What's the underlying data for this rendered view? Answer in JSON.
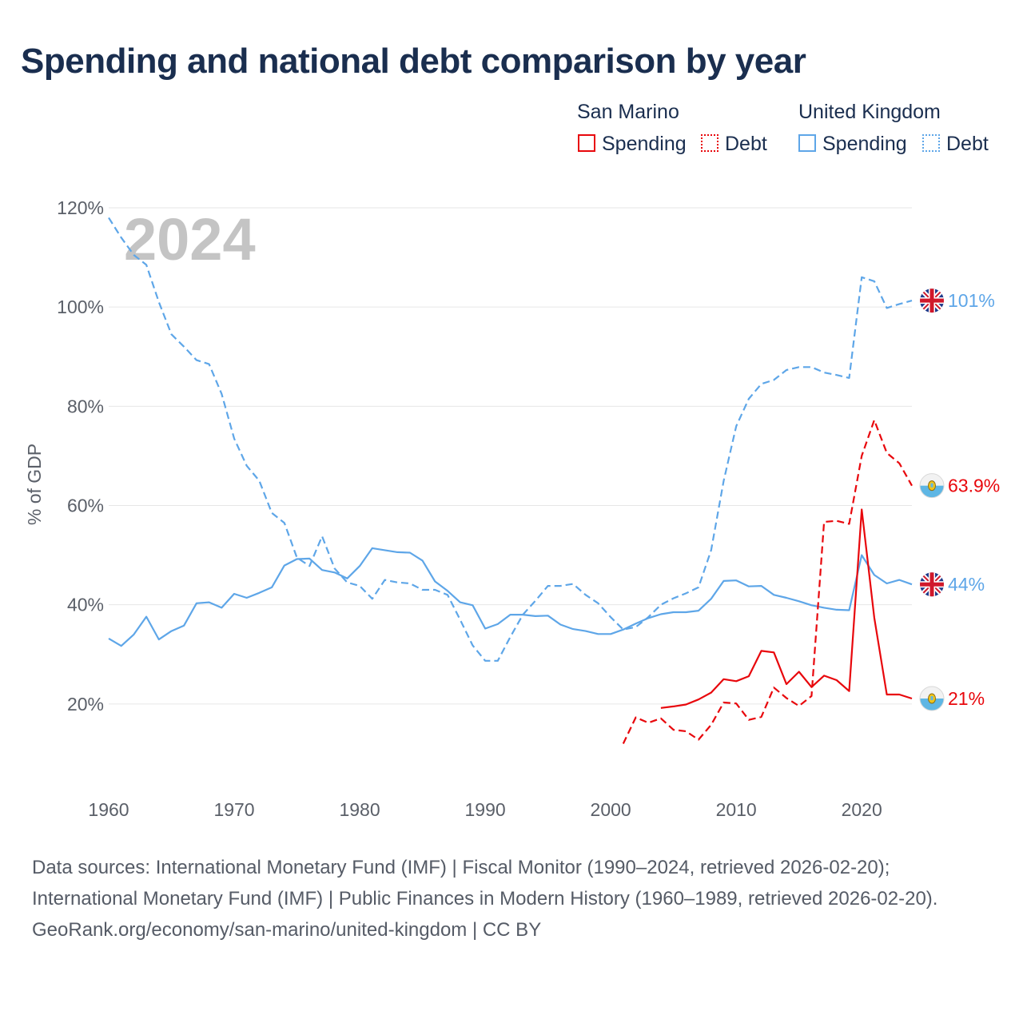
{
  "title": "Spending and national debt comparison by year",
  "legend": {
    "groups": [
      {
        "name": "San Marino",
        "items": [
          "Spending",
          "Debt"
        ]
      },
      {
        "name": "United Kingdom",
        "items": [
          "Spending",
          "Debt"
        ]
      }
    ]
  },
  "colors": {
    "san_marino": "#e8070c",
    "united_kingdom": "#5ea6e8",
    "grid": "#e6e6e6",
    "year_watermark": "#c4c4c4"
  },
  "chart_data": {
    "type": "line",
    "title": "Spending and national debt comparison by year",
    "xlabel": "",
    "ylabel": "% of GDP",
    "xlim": [
      1960,
      2024
    ],
    "ylim": [
      0,
      120
    ],
    "x_ticks": [
      1960,
      1970,
      1980,
      1990,
      2000,
      2010,
      2020
    ],
    "y_ticks": [
      20,
      40,
      60,
      80,
      100,
      120
    ],
    "y_tick_labels": [
      "20%",
      "40%",
      "60%",
      "80%",
      "100%",
      "120%"
    ],
    "x_tick_labels": [
      "1960",
      "1970",
      "1980",
      "1990",
      "2000",
      "2010",
      "2020"
    ],
    "watermark_year": "2024",
    "series": [
      {
        "name": "United Kingdom Debt",
        "country": "United Kingdom",
        "metric": "Debt",
        "style": "dashed",
        "color": "#5ea6e8",
        "end_label": "101%",
        "end_icon": "uk-flag",
        "points": [
          [
            1960,
            118
          ],
          [
            1961,
            114
          ],
          [
            1962,
            110.5
          ],
          [
            1963,
            108.5
          ],
          [
            1964,
            101
          ],
          [
            1965,
            94.5
          ],
          [
            1966,
            92
          ],
          [
            1967,
            89.3
          ],
          [
            1968,
            88.5
          ],
          [
            1969,
            82.5
          ],
          [
            1970,
            73.5
          ],
          [
            1971,
            68
          ],
          [
            1972,
            65
          ],
          [
            1973,
            58.5
          ],
          [
            1974,
            56.5
          ],
          [
            1975,
            49.5
          ],
          [
            1976,
            47.8
          ],
          [
            1977,
            53.8
          ],
          [
            1978,
            47.3
          ],
          [
            1979,
            44.5
          ],
          [
            1980,
            43.8
          ],
          [
            1981,
            41.2
          ],
          [
            1982,
            45
          ],
          [
            1983,
            44.5
          ],
          [
            1984,
            44.3
          ],
          [
            1985,
            43
          ],
          [
            1986,
            43
          ],
          [
            1987,
            42
          ],
          [
            1988,
            37
          ],
          [
            1989,
            31.8
          ],
          [
            1990,
            28.7
          ],
          [
            1991,
            28.7
          ],
          [
            1992,
            33.5
          ],
          [
            1993,
            38
          ],
          [
            1994,
            40.8
          ],
          [
            1995,
            43.8
          ],
          [
            1996,
            43.8
          ],
          [
            1997,
            44.2
          ],
          [
            1998,
            42
          ],
          [
            1999,
            40.3
          ],
          [
            2000,
            37.5
          ],
          [
            2001,
            35
          ],
          [
            2002,
            35.5
          ],
          [
            2003,
            37.5
          ],
          [
            2004,
            40
          ],
          [
            2005,
            41.3
          ],
          [
            2006,
            42.3
          ],
          [
            2007,
            43.5
          ],
          [
            2008,
            51
          ],
          [
            2009,
            65
          ],
          [
            2010,
            76
          ],
          [
            2011,
            81.5
          ],
          [
            2012,
            84.5
          ],
          [
            2013,
            85.3
          ],
          [
            2014,
            87.3
          ],
          [
            2015,
            87.9
          ],
          [
            2016,
            87.9
          ],
          [
            2017,
            86.8
          ],
          [
            2018,
            86.3
          ],
          [
            2019,
            85.7
          ],
          [
            2020,
            106
          ],
          [
            2021,
            105.2
          ],
          [
            2022,
            99.8
          ],
          [
            2023,
            100.6
          ],
          [
            2024,
            101.3
          ]
        ]
      },
      {
        "name": "United Kingdom Spending",
        "country": "United Kingdom",
        "metric": "Spending",
        "style": "solid",
        "color": "#5ea6e8",
        "end_label": "44%",
        "end_icon": "uk-flag",
        "points": [
          [
            1960,
            33.2
          ],
          [
            1961,
            31.7
          ],
          [
            1962,
            34
          ],
          [
            1963,
            37.6
          ],
          [
            1964,
            33
          ],
          [
            1965,
            34.7
          ],
          [
            1966,
            35.8
          ],
          [
            1967,
            40.3
          ],
          [
            1968,
            40.5
          ],
          [
            1969,
            39.4
          ],
          [
            1970,
            42.2
          ],
          [
            1971,
            41.4
          ],
          [
            1972,
            42.4
          ],
          [
            1973,
            43.5
          ],
          [
            1974,
            47.9
          ],
          [
            1975,
            49.2
          ],
          [
            1976,
            49.3
          ],
          [
            1977,
            47
          ],
          [
            1978,
            46.5
          ],
          [
            1979,
            45.3
          ],
          [
            1980,
            47.8
          ],
          [
            1981,
            51.4
          ],
          [
            1982,
            51
          ],
          [
            1983,
            50.6
          ],
          [
            1984,
            50.5
          ],
          [
            1985,
            48.9
          ],
          [
            1986,
            44.7
          ],
          [
            1987,
            42.8
          ],
          [
            1988,
            40.5
          ],
          [
            1989,
            39.9
          ],
          [
            1990,
            35.2
          ],
          [
            1991,
            36.1
          ],
          [
            1992,
            38
          ],
          [
            1993,
            38
          ],
          [
            1994,
            37.7
          ],
          [
            1995,
            37.8
          ],
          [
            1996,
            36
          ],
          [
            1997,
            35.1
          ],
          [
            1998,
            34.7
          ],
          [
            1999,
            34.1
          ],
          [
            2000,
            34.1
          ],
          [
            2001,
            35
          ],
          [
            2002,
            36.2
          ],
          [
            2003,
            37.3
          ],
          [
            2004,
            38.1
          ],
          [
            2005,
            38.5
          ],
          [
            2006,
            38.5
          ],
          [
            2007,
            38.8
          ],
          [
            2008,
            41.2
          ],
          [
            2009,
            44.8
          ],
          [
            2010,
            44.9
          ],
          [
            2011,
            43.7
          ],
          [
            2012,
            43.8
          ],
          [
            2013,
            42
          ],
          [
            2014,
            41.4
          ],
          [
            2015,
            40.7
          ],
          [
            2016,
            39.9
          ],
          [
            2017,
            39.4
          ],
          [
            2018,
            39
          ],
          [
            2019,
            38.9
          ],
          [
            2020,
            50
          ],
          [
            2021,
            46
          ],
          [
            2022,
            44.3
          ],
          [
            2023,
            45
          ],
          [
            2024,
            44.1
          ]
        ]
      },
      {
        "name": "San Marino Debt",
        "country": "San Marino",
        "metric": "Debt",
        "style": "dashed",
        "color": "#e8070c",
        "end_label": "63.9%",
        "end_icon": "san-marino-flag",
        "points": [
          [
            2001,
            12
          ],
          [
            2002,
            17.3
          ],
          [
            2003,
            16.2
          ],
          [
            2004,
            17.1
          ],
          [
            2005,
            14.8
          ],
          [
            2006,
            14.5
          ],
          [
            2007,
            12.8
          ],
          [
            2008,
            15.8
          ],
          [
            2009,
            20.3
          ],
          [
            2010,
            20.1
          ],
          [
            2011,
            16.8
          ],
          [
            2012,
            17.4
          ],
          [
            2013,
            23.3
          ],
          [
            2014,
            21.2
          ],
          [
            2015,
            19.6
          ],
          [
            2016,
            21.6
          ],
          [
            2017,
            56.7
          ],
          [
            2018,
            56.9
          ],
          [
            2019,
            56.3
          ],
          [
            2020,
            70
          ],
          [
            2021,
            77.2
          ],
          [
            2022,
            70.6
          ],
          [
            2023,
            68.5
          ],
          [
            2024,
            64
          ]
        ]
      },
      {
        "name": "San Marino Spending",
        "country": "San Marino",
        "metric": "Spending",
        "style": "solid",
        "color": "#e8070c",
        "end_label": "21%",
        "end_icon": "san-marino-flag",
        "points": [
          [
            2004,
            19.2
          ],
          [
            2005,
            19.5
          ],
          [
            2006,
            19.9
          ],
          [
            2007,
            20.9
          ],
          [
            2008,
            22.3
          ],
          [
            2009,
            25
          ],
          [
            2010,
            24.6
          ],
          [
            2011,
            25.6
          ],
          [
            2012,
            30.7
          ],
          [
            2013,
            30.4
          ],
          [
            2014,
            24
          ],
          [
            2015,
            26.5
          ],
          [
            2016,
            23.4
          ],
          [
            2017,
            25.7
          ],
          [
            2018,
            24.8
          ],
          [
            2019,
            22.6
          ],
          [
            2020,
            59.2
          ],
          [
            2021,
            37.4
          ],
          [
            2022,
            21.9
          ],
          [
            2023,
            21.9
          ],
          [
            2024,
            21.1
          ]
        ]
      }
    ]
  },
  "source": {
    "text": "Data sources: International Monetary Fund (IMF) | Fiscal Monitor (1990–2024, retrieved 2026-02-20); International Monetary Fund (IMF) | Public Finances in Modern History (1960–1989, retrieved 2026-02-20).",
    "attribution": "GeoRank.org/economy/san-marino/united-kingdom | CC BY"
  }
}
